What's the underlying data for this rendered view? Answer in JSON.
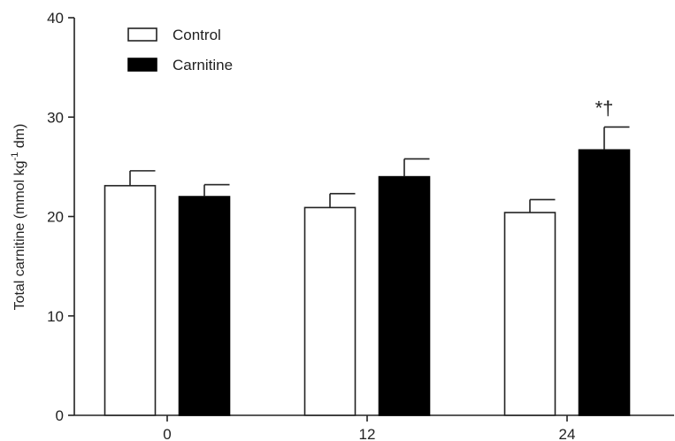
{
  "chart_data": {
    "type": "bar",
    "title": "",
    "xlabel": "",
    "ylabel": "Total carnitine (mmol kg",
    "ylabel_sup": "-1",
    "ylabel_tail": " dm)",
    "categories": [
      "0",
      "12",
      "24"
    ],
    "ylim": [
      0,
      40
    ],
    "yticks": [
      0,
      10,
      20,
      30,
      40
    ],
    "grid": false,
    "legend": "top-left",
    "series": [
      {
        "name": "Control",
        "values": [
          23.1,
          20.9,
          20.4
        ],
        "errors": [
          1.5,
          1.4,
          1.3
        ],
        "fill": "#ffffff",
        "stroke": "#222222"
      },
      {
        "name": "Carnitine",
        "values": [
          22.0,
          24.0,
          26.7
        ],
        "errors": [
          1.2,
          1.8,
          2.3
        ],
        "fill": "#000000",
        "stroke": "#000000"
      }
    ],
    "annotations": [
      {
        "text": "*†",
        "category_index": 2,
        "series_index": 1
      }
    ]
  }
}
